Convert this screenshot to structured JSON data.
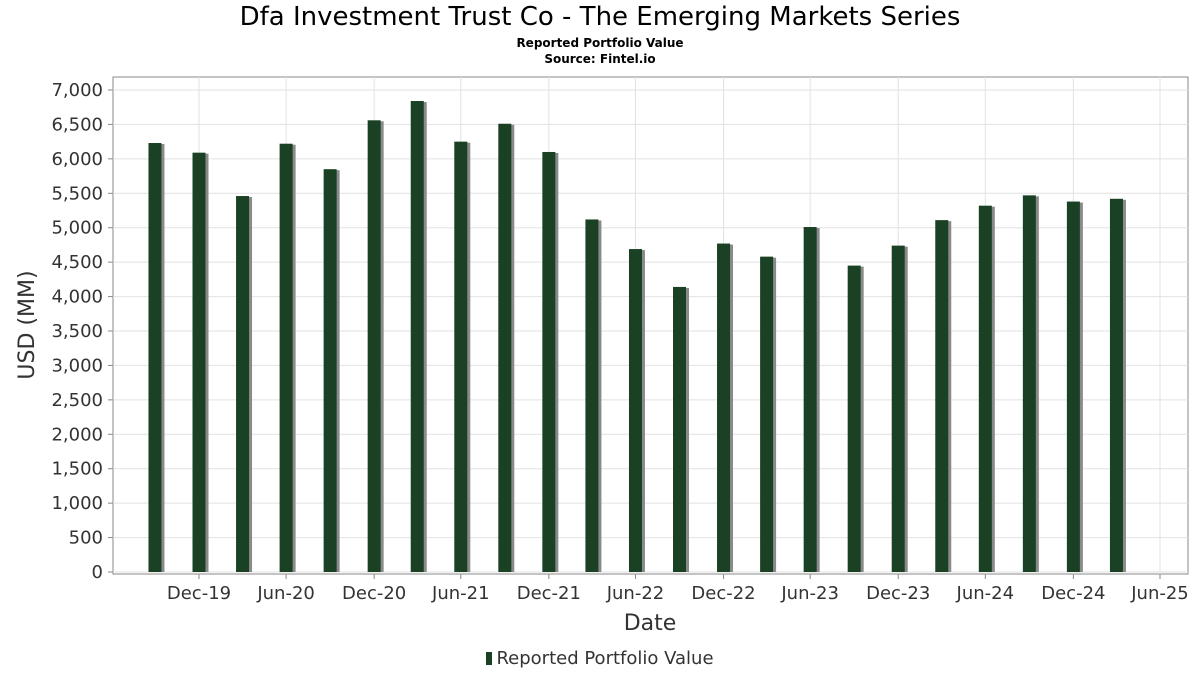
{
  "chart_data": {
    "type": "bar",
    "title": "Dfa Investment Trust Co - The Emerging Markets Series",
    "subtitle": "Reported Portfolio Value",
    "source": "Source: Fintel.io",
    "xlabel": "Date",
    "ylabel": "USD (MM)",
    "ylim": [
      0,
      7000
    ],
    "y_ticks": [
      0,
      500,
      1000,
      1500,
      2000,
      2500,
      3000,
      3500,
      4000,
      4500,
      5000,
      5500,
      6000,
      6500,
      7000
    ],
    "x_tick_labels": [
      "Dec-19",
      "Jun-20",
      "Dec-20",
      "Jun-21",
      "Dec-21",
      "Jun-22",
      "Dec-22",
      "Jun-23",
      "Dec-23",
      "Jun-24",
      "Dec-24",
      "Jun-25"
    ],
    "x": [
      "2019-09-30",
      "2019-12-31",
      "2020-03-31",
      "2020-06-30",
      "2020-09-30",
      "2020-12-31",
      "2021-03-31",
      "2021-06-30",
      "2021-09-30",
      "2021-12-31",
      "2022-03-31",
      "2022-06-30",
      "2022-09-30",
      "2022-12-31",
      "2023-03-31",
      "2023-06-30",
      "2023-09-30",
      "2023-12-31",
      "2024-03-31",
      "2024-06-30",
      "2024-09-30",
      "2024-12-31",
      "2025-03-31"
    ],
    "series": [
      {
        "name": "Reported Portfolio Value",
        "values": [
          6230,
          6090,
          5460,
          6220,
          5850,
          6560,
          6840,
          6250,
          6510,
          6100,
          5120,
          4690,
          4140,
          4770,
          4580,
          5010,
          4450,
          4740,
          5110,
          5320,
          5470,
          5380,
          5420
        ]
      }
    ],
    "bar_color": "#1a4124",
    "shadow_color": "#8a8a8a",
    "grid": true,
    "legend_position": "bottom-center"
  }
}
